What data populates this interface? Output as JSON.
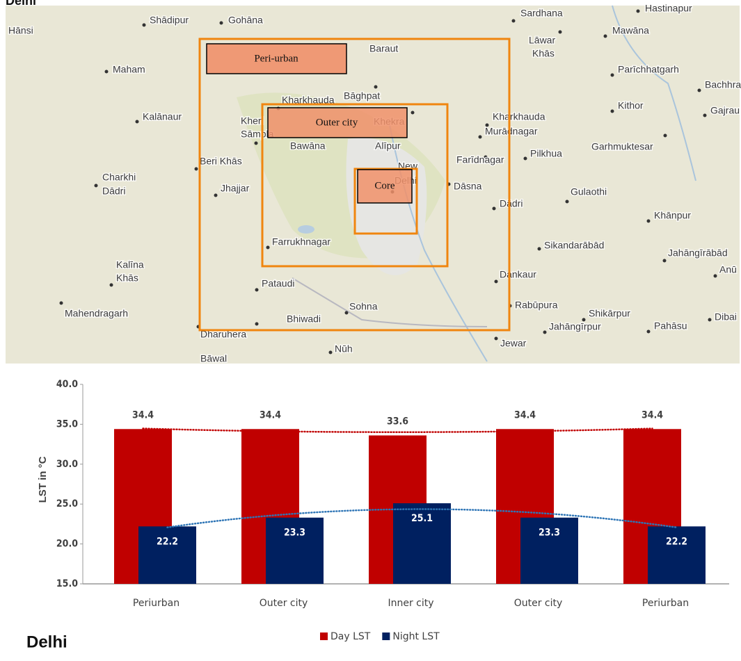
{
  "map": {
    "title": "Delhi",
    "places": [
      "Hānsi",
      "Shādipur",
      "Gohāna",
      "Sardhana",
      "Hastinapur",
      "Mawāna",
      "Lāwar",
      "Khās",
      "Baraut",
      "Maham",
      "Parīchhatgarh",
      "Bachhra",
      "Kharkhauda",
      "Bāghpat",
      "Kithor",
      "Gajrau",
      "Kalānaur",
      "Kheri",
      "Sāmpla",
      "Khekra",
      "Kharkhauda",
      "Murādnagar",
      "Garhmuktesar",
      "Bawāna",
      "Alīpur",
      "Farīdnagar",
      "Pilkhua",
      "Beri Khās",
      "New",
      "Delhi",
      "Charkhi",
      "Dādri",
      "Jhajjar",
      "Dāsna",
      "Gulaothi",
      "Dādri",
      "Khānpur",
      "Farrukhnagar",
      "Sikandarābād",
      "Jahāngīrābād",
      "Anū",
      "Kalīna",
      "Khās",
      "Dankaur",
      "Pataudi",
      "Sohna",
      "Rabūpura",
      "Shikārpur",
      "Mahendragarh",
      "Dibai",
      "Bhiwadi",
      "Jahāngīrpur",
      "Pahāsu",
      "Dharuhera",
      "Nūh",
      "Jewar",
      "Bāwal"
    ],
    "zones": [
      "Peri-urban",
      "Outer city",
      "Core"
    ]
  },
  "chart_data": {
    "type": "bar",
    "title": "Delhi",
    "y_label": "LST in °C",
    "categories": [
      "Periurban",
      "Outer city",
      "Inner city",
      "Outer city",
      "Periurban"
    ],
    "series": [
      {
        "name": "Day LST",
        "color": "#c00000",
        "values": [
          34.4,
          34.4,
          33.6,
          34.4,
          34.4
        ]
      },
      {
        "name": "Night LST",
        "color": "#002060",
        "values": [
          22.2,
          23.3,
          25.1,
          23.3,
          22.2
        ]
      }
    ],
    "ylim": [
      15,
      40
    ],
    "yticks": [
      {
        "value": 15,
        "label": "15.0"
      },
      {
        "value": 20,
        "label": "20.0"
      },
      {
        "value": 25,
        "label": "25.0"
      },
      {
        "value": 30,
        "label": "30.0"
      },
      {
        "value": 35,
        "label": "35.0"
      },
      {
        "value": 40,
        "label": "40.0"
      }
    ],
    "trendline": true,
    "grid": false,
    "legend": "bottom"
  }
}
